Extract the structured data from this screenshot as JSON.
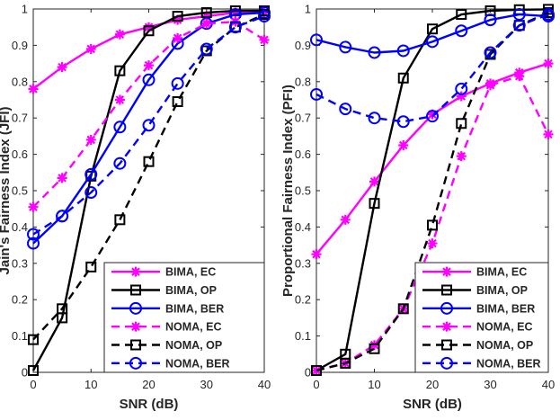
{
  "chart_data": [
    {
      "type": "line",
      "xlabel": "SNR (dB)",
      "ylabel": "Jain's Fairness Index (JFI)",
      "xlim": [
        0,
        40
      ],
      "ylim": [
        0,
        1
      ],
      "xticks": [
        "0",
        "10",
        "20",
        "30",
        "40"
      ],
      "yticks": [
        "0",
        "0.1",
        "0.2",
        "0.3",
        "0.4",
        "0.5",
        "0.6",
        "0.7",
        "0.8",
        "0.9",
        "1"
      ],
      "grid": false,
      "legend_position": "bottom-right",
      "series": [
        {
          "name": "BIMA, EC",
          "color": "#ff00ff",
          "line": "solid",
          "marker": "asterisk",
          "x": [
            0,
            5,
            10,
            15,
            20,
            25,
            30,
            35,
            40
          ],
          "y": [
            0.78,
            0.84,
            0.89,
            0.93,
            0.95,
            0.97,
            0.98,
            0.99,
            0.99
          ]
        },
        {
          "name": "BIMA, OP",
          "color": "#000000",
          "line": "solid",
          "marker": "square",
          "x": [
            0,
            5,
            10,
            15,
            20,
            25,
            30,
            35,
            40
          ],
          "y": [
            0.005,
            0.15,
            0.54,
            0.83,
            0.94,
            0.98,
            0.99,
            0.995,
            0.995
          ]
        },
        {
          "name": "BIMA, BER",
          "color": "#0000ff",
          "line": "solid",
          "marker": "circle",
          "x": [
            0,
            5,
            10,
            15,
            20,
            25,
            30,
            35,
            40
          ],
          "y": [
            0.355,
            0.43,
            0.545,
            0.675,
            0.805,
            0.905,
            0.96,
            0.985,
            0.99
          ]
        },
        {
          "name": "NOMA, EC",
          "color": "#ff00ff",
          "line": "dashed",
          "marker": "asterisk",
          "x": [
            0,
            5,
            10,
            15,
            20,
            25,
            30,
            35,
            40
          ],
          "y": [
            0.455,
            0.535,
            0.64,
            0.75,
            0.845,
            0.92,
            0.96,
            0.965,
            0.915
          ]
        },
        {
          "name": "NOMA, OP",
          "color": "#000000",
          "line": "dashed",
          "marker": "square",
          "x": [
            0,
            5,
            10,
            15,
            20,
            25,
            30,
            35,
            40
          ],
          "y": [
            0.09,
            0.175,
            0.29,
            0.42,
            0.58,
            0.745,
            0.885,
            0.95,
            0.985
          ]
        },
        {
          "name": "NOMA, BER",
          "color": "#0000ff",
          "line": "dashed",
          "marker": "circle",
          "x": [
            0,
            5,
            10,
            15,
            20,
            25,
            30,
            35,
            40
          ],
          "y": [
            0.38,
            0.43,
            0.495,
            0.575,
            0.68,
            0.795,
            0.89,
            0.95,
            0.98
          ]
        }
      ]
    },
    {
      "type": "line",
      "xlabel": "SNR (dB)",
      "ylabel": "Proportional Fairness Index (PFI)",
      "xlim": [
        0,
        40
      ],
      "ylim": [
        0,
        1
      ],
      "xticks": [
        "0",
        "10",
        "20",
        "30",
        "40"
      ],
      "yticks": [
        "0",
        "0.1",
        "0.2",
        "0.3",
        "0.4",
        "0.5",
        "0.6",
        "0.7",
        "0.8",
        "0.9",
        "1"
      ],
      "grid": false,
      "legend_position": "bottom-right",
      "series": [
        {
          "name": "BIMA, EC",
          "color": "#ff00ff",
          "line": "solid",
          "marker": "asterisk",
          "x": [
            0,
            5,
            10,
            15,
            20,
            25,
            30,
            35,
            40
          ],
          "y": [
            0.325,
            0.42,
            0.525,
            0.625,
            0.71,
            0.76,
            0.795,
            0.825,
            0.85
          ]
        },
        {
          "name": "BIMA, OP",
          "color": "#000000",
          "line": "solid",
          "marker": "square",
          "x": [
            0,
            5,
            10,
            15,
            20,
            25,
            30,
            35,
            40
          ],
          "y": [
            0.005,
            0.05,
            0.465,
            0.81,
            0.945,
            0.985,
            0.995,
            0.998,
            0.999
          ]
        },
        {
          "name": "BIMA, BER",
          "color": "#0000ff",
          "line": "solid",
          "marker": "circle",
          "x": [
            0,
            5,
            10,
            15,
            20,
            25,
            30,
            35,
            40
          ],
          "y": [
            0.915,
            0.895,
            0.88,
            0.885,
            0.91,
            0.94,
            0.97,
            0.985,
            0.98
          ]
        },
        {
          "name": "NOMA, EC",
          "color": "#ff00ff",
          "line": "dashed",
          "marker": "asterisk",
          "x": [
            0,
            5,
            10,
            15,
            20,
            25,
            30,
            35,
            40
          ],
          "y": [
            0.005,
            0.025,
            0.075,
            0.175,
            0.355,
            0.595,
            0.79,
            0.815,
            0.655
          ]
        },
        {
          "name": "NOMA, OP",
          "color": "#000000",
          "line": "dashed",
          "marker": "square",
          "x": [
            0,
            5,
            10,
            15,
            20,
            25,
            30,
            35,
            40
          ],
          "y": [
            0.005,
            0.025,
            0.065,
            0.175,
            0.405,
            0.685,
            0.875,
            0.955,
            0.99
          ]
        },
        {
          "name": "NOMA, BER",
          "color": "#0000ff",
          "line": "dashed",
          "marker": "circle",
          "x": [
            0,
            5,
            10,
            15,
            20,
            25,
            30,
            35,
            40
          ],
          "y": [
            0.765,
            0.725,
            0.7,
            0.69,
            0.705,
            0.78,
            0.88,
            0.955,
            0.985
          ]
        }
      ]
    }
  ]
}
